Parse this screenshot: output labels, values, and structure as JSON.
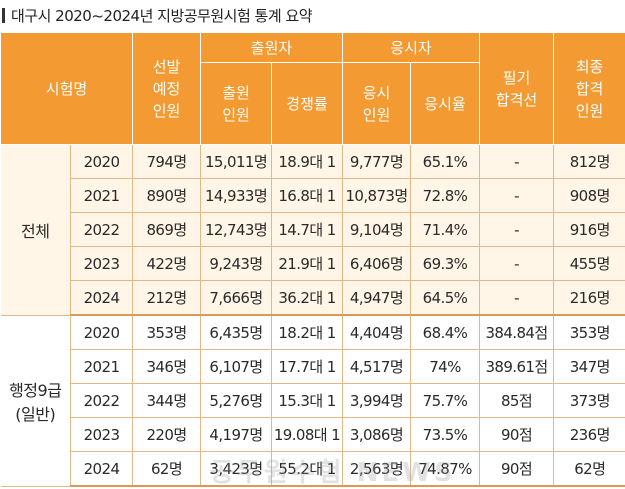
{
  "title": "대구시 2020~2024년 지방공무원시험 통계 요약",
  "header": {
    "exam": "시험명",
    "planned": "선발\n예정\n인원",
    "applicants": "출원자",
    "applicant_count": "출원\n인원",
    "competition": "경쟁률",
    "takers": "응시자",
    "taker_count": "응시\n인원",
    "taker_rate": "응시율",
    "written_cutoff": "필기\n합격선",
    "final": "최종\n합격\n인원"
  },
  "sections": [
    {
      "label": "전체",
      "rows": [
        {
          "year": "2020",
          "planned": "794명",
          "applicants": "15,011명",
          "competition": "18.9대 1",
          "takers": "9,777명",
          "rate": "65.1%",
          "cutoff": "-",
          "final": "812명"
        },
        {
          "year": "2021",
          "planned": "890명",
          "applicants": "14,933명",
          "competition": "16.8대 1",
          "takers": "10,873명",
          "rate": "72.8%",
          "cutoff": "-",
          "final": "908명"
        },
        {
          "year": "2022",
          "planned": "869명",
          "applicants": "12,743명",
          "competition": "14.7대 1",
          "takers": "9,104명",
          "rate": "71.4%",
          "cutoff": "-",
          "final": "916명"
        },
        {
          "year": "2023",
          "planned": "422명",
          "applicants": "9,243명",
          "competition": "21.9대 1",
          "takers": "6,406명",
          "rate": "69.3%",
          "cutoff": "-",
          "final": "455명"
        },
        {
          "year": "2024",
          "planned": "212명",
          "applicants": "7,666명",
          "competition": "36.2대 1",
          "takers": "4,947명",
          "rate": "64.5%",
          "cutoff": "-",
          "final": "216명"
        }
      ]
    },
    {
      "label": "행정9급\n(일반)",
      "rows": [
        {
          "year": "2020",
          "planned": "353명",
          "applicants": "6,435명",
          "competition": "18.2대 1",
          "takers": "4,404명",
          "rate": "68.4%",
          "cutoff": "384.84점",
          "final": "353명"
        },
        {
          "year": "2021",
          "planned": "346명",
          "applicants": "6,107명",
          "competition": "17.7대 1",
          "takers": "4,517명",
          "rate": "74%",
          "cutoff": "389.61점",
          "final": "347명"
        },
        {
          "year": "2022",
          "planned": "344명",
          "applicants": "5,276명",
          "competition": "15.3대 1",
          "takers": "3,994명",
          "rate": "75.7%",
          "cutoff": "85점",
          "final": "373명"
        },
        {
          "year": "2023",
          "planned": "220명",
          "applicants": "4,197명",
          "competition": "19.08대 1",
          "takers": "3,086명",
          "rate": "73.5%",
          "cutoff": "90점",
          "final": "236명"
        },
        {
          "year": "2024",
          "planned": "62명",
          "applicants": "3,423명",
          "competition": "55.2대 1",
          "takers": "2,563명",
          "rate": "74.87%",
          "cutoff": "90점",
          "final": "62명"
        }
      ]
    }
  ],
  "watermark": "공무원수험 NEWS",
  "colors": {
    "header": "#f39a32",
    "section1_bg": "#fff6e8",
    "section2_bg": "#ffffff",
    "rule": "#e3b889"
  }
}
